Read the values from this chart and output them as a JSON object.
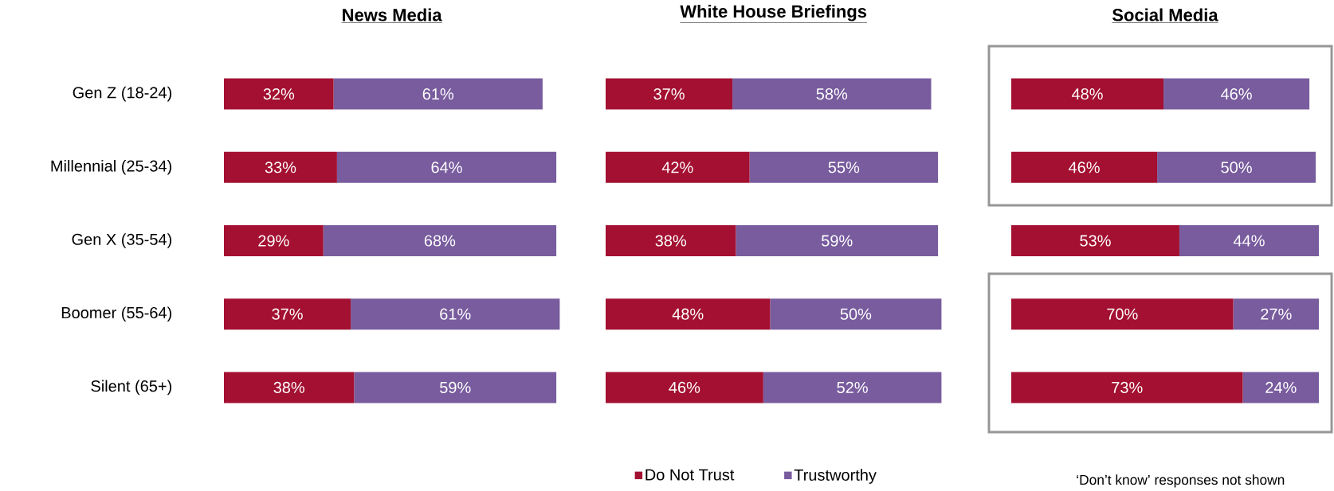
{
  "chart_data": [
    {
      "type": "bar",
      "orientation": "horizontal",
      "stacked": true,
      "title": "**News Media**",
      "categories": [
        "Gen Z (18-24)",
        "Millennial (25-34)",
        "Gen X (35-54)",
        "Boomer (55-64)",
        "Silent (65+)"
      ],
      "series": [
        {
          "color": "#a31031",
          "values": [
            32,
            33,
            29,
            37,
            38
          ],
          "value_labels": [
            "32%",
            "33%",
            "29%",
            "37%",
            "38%"
          ]
        },
        {
          "color": "#785c9e",
          "values": [
            61,
            64,
            68,
            61,
            59
          ],
          "value_labels": [
            "61%",
            "64%",
            "68%",
            "61%",
            "59%"
          ]
        }
      ]
    },
    {
      "type": "bar",
      "orientation": "horizontal",
      "stacked": true,
      "title": "**White House Briefings**",
      "tick_labels": false,
      "legend": "bottom",
      "categories": [
        null,
        null,
        null,
        null,
        null
      ],
      "series": [
        {
          "name": "Do Not Trust",
          "color": "#a31031",
          "values": [
            37,
            42,
            38,
            48,
            46
          ],
          "value_labels": [
            "37%",
            "42%",
            "38%",
            "48%",
            "46%"
          ]
        },
        {
          "name": "Trustworthy",
          "color": "#785c9e",
          "values": [
            58,
            55,
            59,
            50,
            52
          ],
          "value_labels": [
            "58%",
            "55%",
            "59%",
            "50%",
            "52%"
          ]
        }
      ]
    },
    {
      "type": "bar",
      "orientation": "horizontal",
      "stacked": true,
      "title": "**Social Media**",
      "tick_labels": false,
      "categories": [
        null,
        null,
        null,
        null,
        null
      ],
      "series": [
        {
          "color": "#a31031",
          "values": [
            48,
            46,
            53,
            70,
            73
          ],
          "value_labels": [
            "48%",
            "46%",
            "53%",
            "70%",
            "73%"
          ]
        },
        {
          "color": "#785c9e",
          "values": [
            46,
            50,
            44,
            27,
            24
          ],
          "value_labels": [
            "46%",
            "50%",
            "44%",
            "27%",
            "24%"
          ]
        }
      ],
      "annotations": [
        "‘Don’t know’ responses not shown"
      ]
    }
  ]
}
